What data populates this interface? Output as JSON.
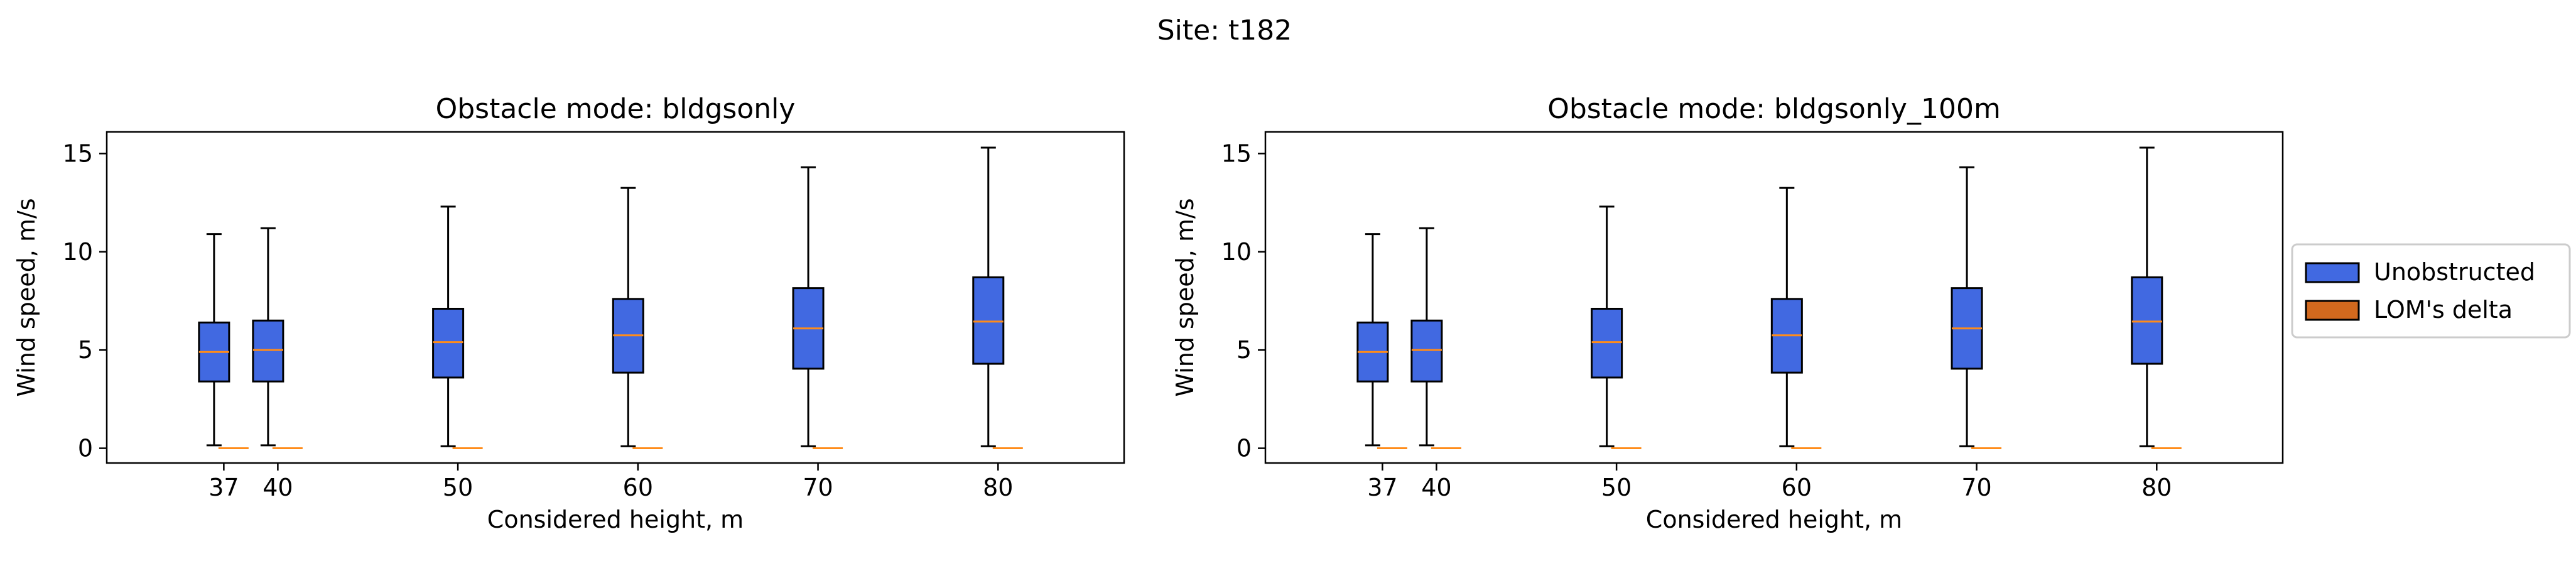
{
  "figure": {
    "suptitle": "Site: t182"
  },
  "colors": {
    "unobstructed": "#4169E1",
    "lom_delta": "#D2691E",
    "median": "#FF8C1A",
    "edge": "#000000"
  },
  "legend": {
    "placement": "right",
    "entries": [
      "Unobstructed",
      "LOM's delta"
    ]
  },
  "chart_data": [
    {
      "type": "box",
      "title": "Obstacle mode: bldgsonly",
      "xlabel": "Considered height, m",
      "ylabel": "Wind speed, m/s",
      "xlim": [
        30.5,
        87
      ],
      "ylim": [
        -0.75,
        16.1
      ],
      "xticks": [
        37,
        40,
        50,
        60,
        70,
        80
      ],
      "yticks": [
        0,
        5,
        10,
        15
      ],
      "grid": false,
      "series": [
        {
          "name": "Unobstructed",
          "boxes": [
            {
              "x": 37,
              "whislo": 0.15,
              "q1": 3.4,
              "median": 4.9,
              "q3": 6.4,
              "whishi": 10.9
            },
            {
              "x": 40,
              "whislo": 0.15,
              "q1": 3.4,
              "median": 5.0,
              "q3": 6.5,
              "whishi": 11.2
            },
            {
              "x": 50,
              "whislo": 0.1,
              "q1": 3.6,
              "median": 5.4,
              "q3": 7.1,
              "whishi": 12.3
            },
            {
              "x": 60,
              "whislo": 0.1,
              "q1": 3.85,
              "median": 5.75,
              "q3": 7.6,
              "whishi": 13.25
            },
            {
              "x": 70,
              "whislo": 0.1,
              "q1": 4.05,
              "median": 6.1,
              "q3": 8.15,
              "whishi": 14.3
            },
            {
              "x": 80,
              "whislo": 0.1,
              "q1": 4.3,
              "median": 6.45,
              "q3": 8.7,
              "whishi": 15.3
            }
          ]
        },
        {
          "name": "LOM's delta",
          "boxes": [
            {
              "x": 37,
              "whislo": 0,
              "q1": 0,
              "median": 0,
              "q3": 0,
              "whishi": 0
            },
            {
              "x": 40,
              "whislo": 0,
              "q1": 0,
              "median": 0,
              "q3": 0,
              "whishi": 0
            },
            {
              "x": 50,
              "whislo": 0,
              "q1": 0,
              "median": 0,
              "q3": 0,
              "whishi": 0
            },
            {
              "x": 60,
              "whislo": 0,
              "q1": 0,
              "median": 0,
              "q3": 0,
              "whishi": 0
            },
            {
              "x": 70,
              "whislo": 0,
              "q1": 0,
              "median": 0,
              "q3": 0,
              "whishi": 0
            },
            {
              "x": 80,
              "whislo": 0,
              "q1": 0,
              "median": 0,
              "q3": 0,
              "whishi": 0
            }
          ]
        }
      ]
    },
    {
      "type": "box",
      "title": "Obstacle mode: bldgsonly_100m",
      "xlabel": "Considered height, m",
      "ylabel": "Wind speed, m/s",
      "xlim": [
        30.5,
        87
      ],
      "ylim": [
        -0.75,
        16.1
      ],
      "xticks": [
        37,
        40,
        50,
        60,
        70,
        80
      ],
      "yticks": [
        0,
        5,
        10,
        15
      ],
      "grid": false,
      "series": [
        {
          "name": "Unobstructed",
          "boxes": [
            {
              "x": 37,
              "whislo": 0.15,
              "q1": 3.4,
              "median": 4.9,
              "q3": 6.4,
              "whishi": 10.9
            },
            {
              "x": 40,
              "whislo": 0.15,
              "q1": 3.4,
              "median": 5.0,
              "q3": 6.5,
              "whishi": 11.2
            },
            {
              "x": 50,
              "whislo": 0.1,
              "q1": 3.6,
              "median": 5.4,
              "q3": 7.1,
              "whishi": 12.3
            },
            {
              "x": 60,
              "whislo": 0.1,
              "q1": 3.85,
              "median": 5.75,
              "q3": 7.6,
              "whishi": 13.25
            },
            {
              "x": 70,
              "whislo": 0.1,
              "q1": 4.05,
              "median": 6.1,
              "q3": 8.15,
              "whishi": 14.3
            },
            {
              "x": 80,
              "whislo": 0.1,
              "q1": 4.3,
              "median": 6.45,
              "q3": 8.7,
              "whishi": 15.3
            }
          ]
        },
        {
          "name": "LOM's delta",
          "boxes": [
            {
              "x": 37,
              "whislo": 0,
              "q1": 0,
              "median": 0,
              "q3": 0,
              "whishi": 0
            },
            {
              "x": 40,
              "whislo": 0,
              "q1": 0,
              "median": 0,
              "q3": 0,
              "whishi": 0
            },
            {
              "x": 50,
              "whislo": 0,
              "q1": 0,
              "median": 0,
              "q3": 0,
              "whishi": 0
            },
            {
              "x": 60,
              "whislo": 0,
              "q1": 0,
              "median": 0,
              "q3": 0,
              "whishi": 0
            },
            {
              "x": 70,
              "whislo": 0,
              "q1": 0,
              "median": 0,
              "q3": 0,
              "whishi": 0
            },
            {
              "x": 80,
              "whislo": 0,
              "q1": 0,
              "median": 0,
              "q3": 0,
              "whishi": 0
            }
          ]
        }
      ]
    }
  ]
}
